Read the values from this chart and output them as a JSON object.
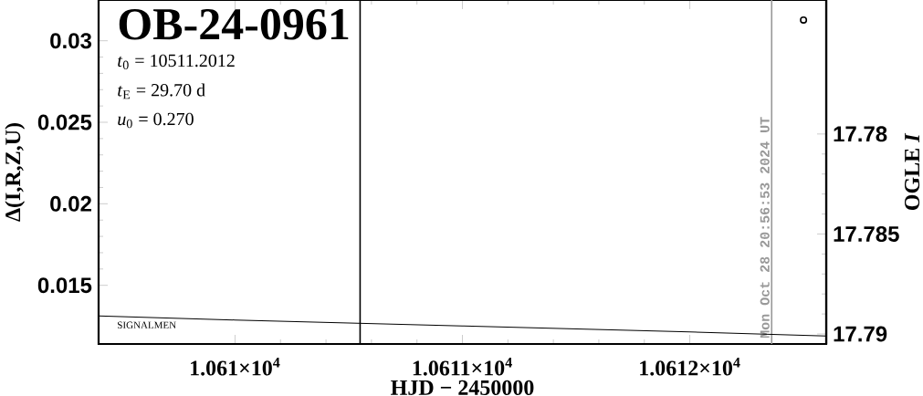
{
  "chart_data": {
    "type": "line",
    "title": "OB-24-0961",
    "xlabel": "HJD − 2450000",
    "ylabel": "Δ(I,R,Z,U)",
    "y2label": "OGLE *I*",
    "annotations": [
      "*t*$_{0}$ = 10511.2012",
      "*t*$_{E}$ = 29.70 d",
      "*u*$_{0}$ = 0.270",
      "SIGNALMEN",
      "Mon Oct 28 20:56:53 2024 UT"
    ],
    "xlim": [
      10609.4,
      10612.6
    ],
    "xticks": [
      {
        "value": 10610,
        "label": "1.061×10$^{4}$"
      },
      {
        "value": 10611,
        "label": "1.0611×10$^{4}$"
      },
      {
        "value": 10612,
        "label": "1.0612×10$^{4}$"
      }
    ],
    "ylim": [
      0.0114,
      0.0325
    ],
    "yticks": [
      0.015,
      0.02,
      0.025,
      0.03
    ],
    "y2lim": [
      17.7905,
      17.7733
    ],
    "y2ticks": [
      17.78,
      17.785,
      17.79
    ],
    "ref_lines": [
      {
        "axis": "x",
        "value": 10610.55,
        "color": "#000000"
      },
      {
        "axis": "x",
        "value": 10612.36,
        "color": "#999999"
      }
    ],
    "series": [
      {
        "type": "line",
        "axis": "y2",
        "color": "#000000",
        "marker": "none",
        "x": [
          10609.4,
          10610,
          10611,
          10612,
          10612.6
        ],
        "values": [
          17.7891,
          17.7893,
          17.7896,
          17.7899,
          17.7901
        ]
      },
      {
        "type": "scatter",
        "axis": "y2",
        "color": "#000000",
        "marker": "circle",
        "x": [
          10612.5
        ],
        "values": [
          17.7743
        ]
      }
    ],
    "grid": false
  }
}
